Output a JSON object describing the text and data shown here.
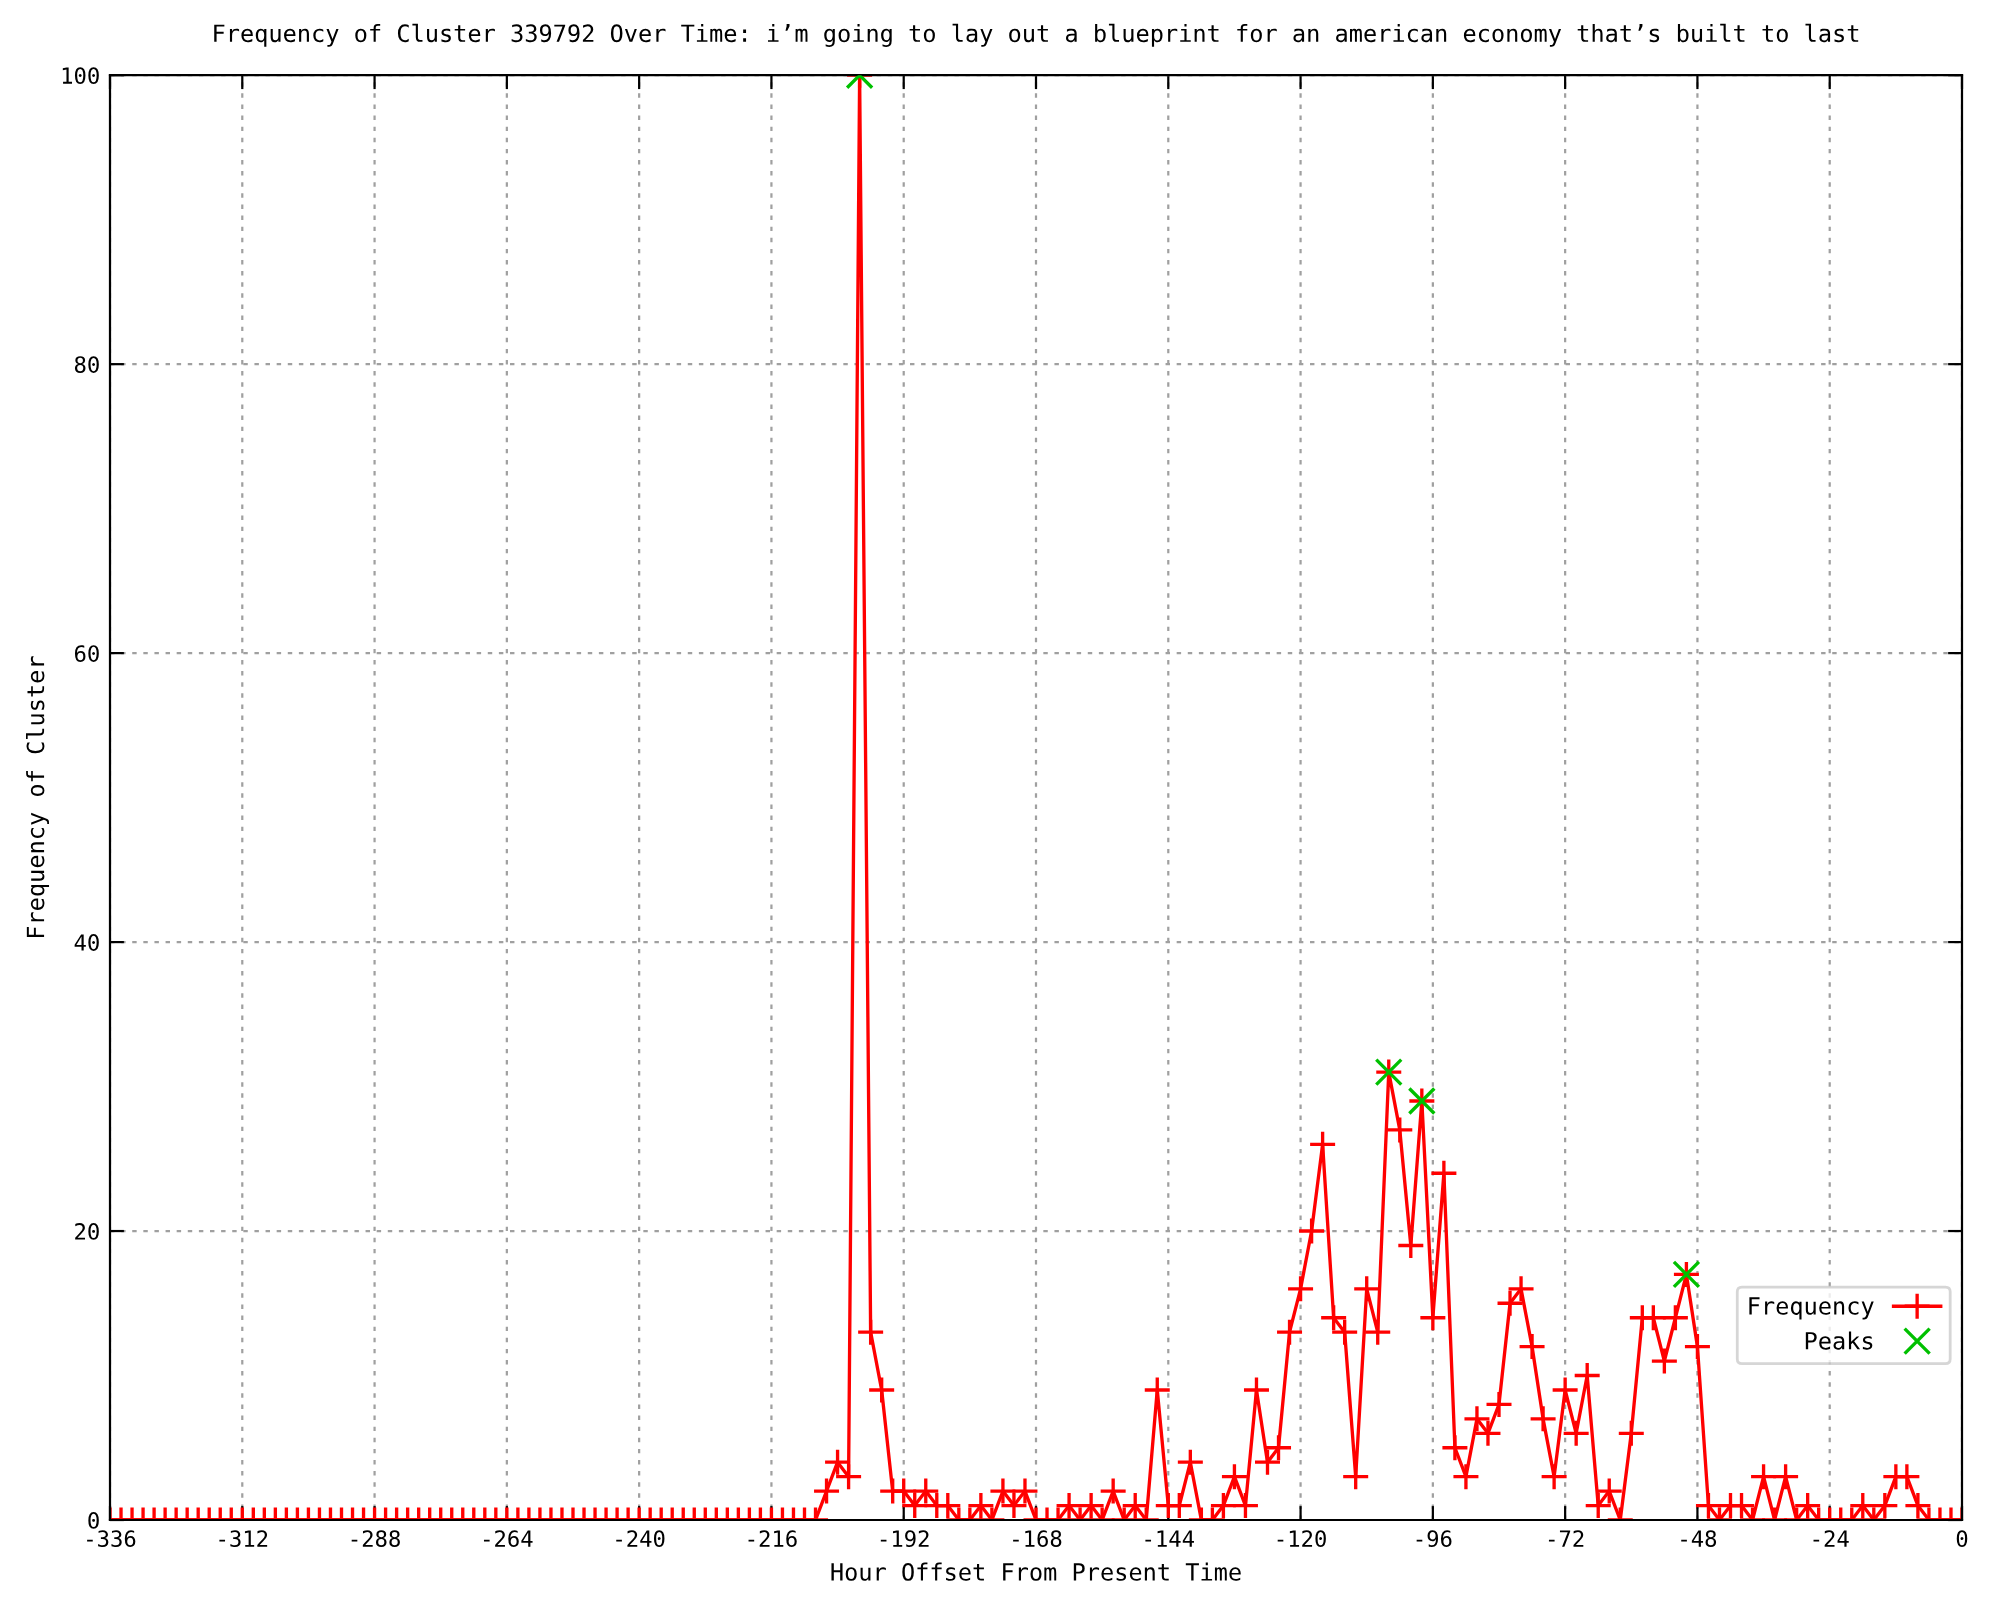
{
  "chart_data": {
    "type": "line",
    "title": "Frequency of Cluster 339792 Over Time: i’m going to lay out a blueprint for an american economy that’s built to last",
    "xlabel": "Hour Offset From Present Time",
    "ylabel": "Frequency of Cluster",
    "xlim": [
      -336,
      0
    ],
    "xticks": [
      -336,
      -312,
      -288,
      -264,
      -240,
      -216,
      -192,
      -168,
      -144,
      -120,
      -96,
      -72,
      -48,
      -24,
      0
    ],
    "ylim": [
      0,
      100
    ],
    "yticks": [
      0,
      20,
      40,
      60,
      80,
      100
    ],
    "grid": true,
    "legend": "bottom right",
    "series": [
      {
        "name": "Frequency",
        "color": "#ff0000",
        "marker": "cross",
        "x": [
          -336,
          -334,
          -332,
          -330,
          -328,
          -326,
          -324,
          -322,
          -320,
          -318,
          -316,
          -314,
          -312,
          -310,
          -308,
          -306,
          -304,
          -302,
          -300,
          -298,
          -296,
          -294,
          -292,
          -290,
          -288,
          -286,
          -284,
          -282,
          -280,
          -278,
          -276,
          -274,
          -272,
          -270,
          -268,
          -266,
          -264,
          -262,
          -260,
          -258,
          -256,
          -254,
          -252,
          -250,
          -248,
          -246,
          -244,
          -242,
          -240,
          -238,
          -236,
          -234,
          -232,
          -230,
          -228,
          -226,
          -224,
          -222,
          -220,
          -218,
          -216,
          -214,
          -212,
          -210,
          -208,
          -206,
          -204,
          -202,
          -200,
          -198,
          -196,
          -194,
          -192,
          -190,
          -188,
          -186,
          -184,
          -182,
          -180,
          -178,
          -176,
          -174,
          -172,
          -170,
          -168,
          -166,
          -164,
          -162,
          -160,
          -158,
          -156,
          -154,
          -152,
          -150,
          -148,
          -146,
          -144,
          -142,
          -140,
          -138,
          -136,
          -134,
          -132,
          -130,
          -128,
          -126,
          -124,
          -122,
          -120,
          -118,
          -116,
          -114,
          -112,
          -110,
          -108,
          -106,
          -104,
          -102,
          -100,
          -98,
          -96,
          -94,
          -92,
          -90,
          -88,
          -86,
          -84,
          -82,
          -80,
          -78,
          -76,
          -74,
          -72,
          -70,
          -68,
          -66,
          -64,
          -62,
          -60,
          -58,
          -56,
          -54,
          -52,
          -50,
          -48,
          -46,
          -44,
          -42,
          -40,
          -38,
          -36,
          -34,
          -32,
          -30,
          -28,
          -26,
          -24,
          -22,
          -20,
          -18,
          -16,
          -14,
          -12,
          -10,
          -8,
          -6,
          -4,
          -2,
          0
        ],
        "values": [
          0,
          0,
          0,
          0,
          0,
          0,
          0,
          0,
          0,
          0,
          0,
          0,
          0,
          0,
          0,
          0,
          0,
          0,
          0,
          0,
          0,
          0,
          0,
          0,
          0,
          0,
          0,
          0,
          0,
          0,
          0,
          0,
          0,
          0,
          0,
          0,
          0,
          0,
          0,
          0,
          0,
          0,
          0,
          0,
          0,
          0,
          0,
          0,
          0,
          0,
          0,
          0,
          0,
          0,
          0,
          0,
          0,
          0,
          0,
          0,
          0,
          0,
          0,
          0,
          0,
          2,
          4,
          3,
          100,
          13,
          9,
          2,
          2,
          1,
          2,
          1,
          1,
          0,
          0,
          1,
          0,
          2,
          1,
          2,
          0,
          0,
          0,
          1,
          0,
          1,
          0,
          2,
          0,
          1,
          0,
          9,
          1,
          1,
          4,
          0,
          0,
          1,
          3,
          1,
          9,
          4,
          5,
          13,
          16,
          20,
          26,
          14,
          13,
          3,
          16,
          13,
          31,
          27,
          19,
          29,
          14,
          24,
          5,
          3,
          7,
          6,
          8,
          15,
          16,
          12,
          7,
          3,
          9,
          6,
          10,
          1,
          2,
          0,
          6,
          14,
          14,
          11,
          14,
          17,
          12,
          1,
          0,
          1,
          1,
          0,
          3,
          0,
          3,
          0,
          1,
          0,
          0,
          0,
          0,
          1,
          0,
          1,
          3,
          3,
          1,
          0,
          0,
          0,
          0
        ]
      },
      {
        "name": "Peaks",
        "type": "scatter",
        "color": "#00c000",
        "marker": "cross",
        "x": [
          -200,
          -104,
          -98,
          -50
        ],
        "values": [
          100,
          31,
          29,
          17
        ]
      }
    ]
  }
}
